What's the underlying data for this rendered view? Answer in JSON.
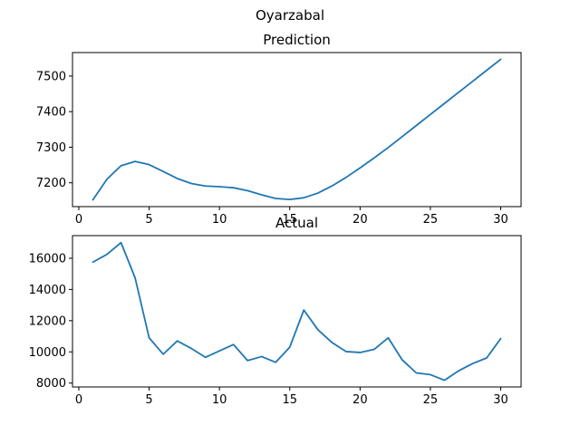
{
  "figure": {
    "suptitle": "Oyarzabal",
    "line_color": "#1f77b4"
  },
  "chart_data": [
    {
      "type": "line",
      "title": "Prediction",
      "xlabel": "",
      "ylabel": "",
      "xlim": [
        -0.45,
        31.45
      ],
      "ylim": [
        7133,
        7566
      ],
      "xticks": [
        0,
        5,
        10,
        15,
        20,
        25,
        30
      ],
      "yticks": [
        7200,
        7300,
        7400,
        7500
      ],
      "grid": false,
      "x": [
        1,
        2,
        3,
        4,
        5,
        6,
        7,
        8,
        9,
        10,
        11,
        12,
        13,
        14,
        15,
        16,
        17,
        18,
        19,
        20,
        21,
        22,
        23,
        24,
        25,
        26,
        27,
        28,
        29,
        30
      ],
      "values": [
        7152,
        7210,
        7248,
        7260,
        7251,
        7232,
        7212,
        7198,
        7191,
        7189,
        7186,
        7178,
        7166,
        7156,
        7153,
        7158,
        7171,
        7191,
        7215,
        7242,
        7270,
        7299,
        7330,
        7361,
        7392,
        7423,
        7454,
        7485,
        7516,
        7547
      ]
    },
    {
      "type": "line",
      "title": "Actual",
      "xlabel": "",
      "ylabel": "",
      "xlim": [
        -0.45,
        31.45
      ],
      "ylim": [
        7750,
        17450
      ],
      "xticks": [
        0,
        5,
        10,
        15,
        20,
        25,
        30
      ],
      "yticks": [
        8000,
        10000,
        12000,
        14000,
        16000
      ],
      "grid": false,
      "x": [
        1,
        2,
        3,
        4,
        5,
        6,
        7,
        8,
        9,
        10,
        11,
        12,
        13,
        14,
        15,
        16,
        17,
        18,
        19,
        20,
        21,
        22,
        23,
        24,
        25,
        26,
        27,
        28,
        29,
        30
      ],
      "values": [
        15750,
        16250,
        17000,
        14750,
        10900,
        9850,
        10700,
        10220,
        9650,
        10060,
        10470,
        9440,
        9700,
        9330,
        10300,
        12680,
        11420,
        10600,
        10020,
        9960,
        10160,
        10900,
        9480,
        8650,
        8540,
        8180,
        8780,
        9250,
        9610,
        10850
      ]
    }
  ]
}
